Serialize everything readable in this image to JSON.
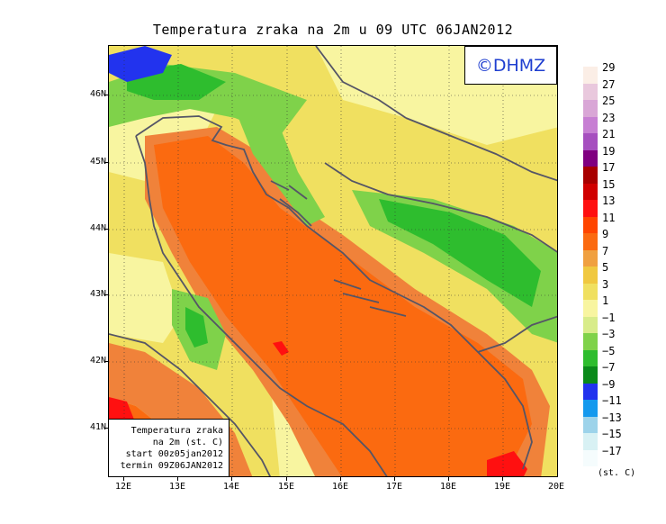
{
  "title": "Temperatura zraka na 2m u 09 UTC 06JAN2012",
  "logo_text": "©DHMZ",
  "info_box": {
    "line1": "Temperatura zraka",
    "line2": "na 2m (st. C)",
    "line3": "start 00z05jan2012",
    "line4": "termin 09Z06JAN2012"
  },
  "axes": {
    "lat_labels": [
      "46N",
      "45N",
      "44N",
      "43N",
      "42N",
      "41N"
    ],
    "lon_labels": [
      "12E",
      "13E",
      "14E",
      "15E",
      "16E",
      "17E",
      "18E",
      "19E",
      "20E"
    ]
  },
  "legend": {
    "unit": "(st. C)",
    "labels": [
      "29",
      "27",
      "25",
      "23",
      "21",
      "19",
      "17",
      "15",
      "13",
      "11",
      "9",
      "7",
      "5",
      "3",
      "1",
      "−1",
      "−3",
      "−5",
      "−7",
      "−9",
      "−11",
      "−13",
      "−15",
      "−17"
    ],
    "colors": [
      "#fbeee6",
      "#e9c8dd",
      "#d9a6d6",
      "#c77fd3",
      "#a64fbf",
      "#800080",
      "#a80000",
      "#d00000",
      "#ff1010",
      "#ff4500",
      "#fb6a10",
      "#f0a040",
      "#f0c840",
      "#f0e060",
      "#f8f5a0",
      "#d8ec8a",
      "#7fd24a",
      "#2ebd2e",
      "#0a8a1a",
      "#2233ee",
      "#1499ee",
      "#9dd3ea",
      "#d8f1f4",
      "#f5fcfd"
    ]
  },
  "colors": {
    "sea_warm": "#fb6a10",
    "sea_mild": "#f0823a",
    "land_yellow": "#f0e060",
    "land_light": "#f8f5a0",
    "green": "#2ebd2e",
    "dark_green": "#0a8a1a",
    "blue": "#2233ee",
    "red": "#ff1010",
    "coast": "#555566"
  }
}
